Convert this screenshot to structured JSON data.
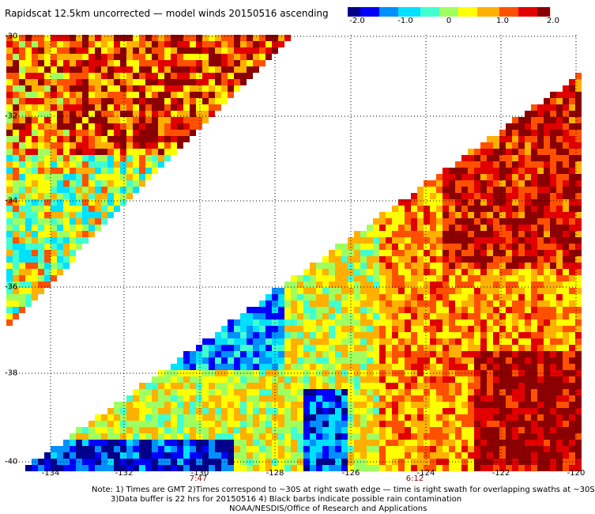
{
  "title": "Rapidscat 12.5km uncorrected — model winds 20150516 ascending",
  "colorbar": {
    "labels": [
      "-2.0",
      "-1.0",
      "0",
      "1.0",
      "2.0"
    ],
    "colors": [
      "#00008b",
      "#0000ff",
      "#0090ff",
      "#00e0ff",
      "#40ffd0",
      "#a0ff60",
      "#ffff00",
      "#ffb000",
      "#ff5000",
      "#e00000",
      "#8b0000"
    ]
  },
  "map": {
    "lat_labels": [
      "-30",
      "-32",
      "-34",
      "-36",
      "-38",
      "-40"
    ],
    "lon_labels": [
      "-134",
      "-132",
      "-130",
      "-128",
      "-126",
      "-124",
      "-122",
      "-120"
    ],
    "lat_range": [
      -40,
      -30
    ],
    "lon_range": [
      -135,
      -120
    ],
    "grid": true,
    "swath_times": [
      "7:47",
      "6:12"
    ]
  },
  "notes": [
    "Note: 1) Times are GMT 2)Times correspond to ~30S at right swath edge — time is right swath for overlapping swaths at ~30S",
    "3)Data buffer is 22 hrs for 20150516 4) Black barbs indicate possible rain contamination",
    "NOAA/NESDIS/Office of Research and Applications"
  ]
}
